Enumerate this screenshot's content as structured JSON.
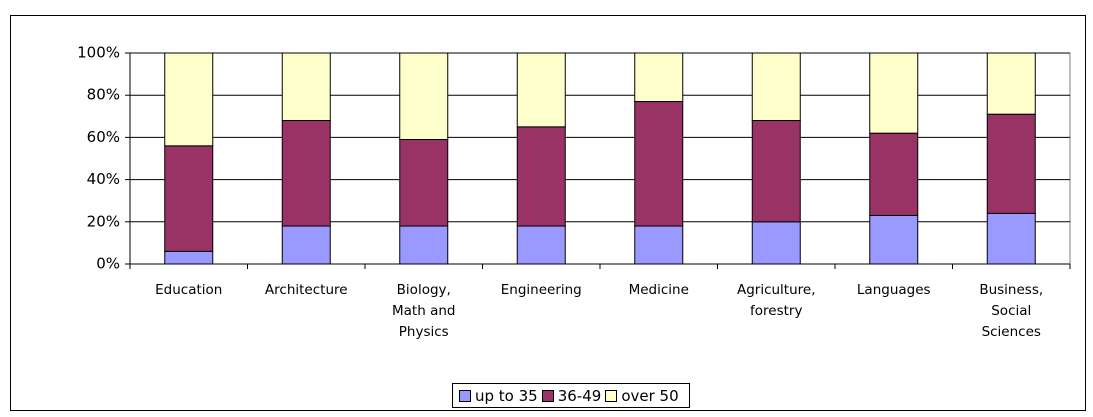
{
  "chart_data": {
    "type": "stacked_bar",
    "categories": [
      "Education",
      "Architecture",
      "Biology, Math and Physics",
      "Engineering",
      "Medicine",
      "Agriculture, forestry",
      "Languages",
      "Business, Social Sciences"
    ],
    "series": [
      {
        "name": "up to 35",
        "color": "#9999ff",
        "values": [
          6,
          18,
          18,
          18,
          18,
          20,
          23,
          24
        ]
      },
      {
        "name": "36-49",
        "color": "#993366",
        "values": [
          50,
          50,
          41,
          47,
          59,
          48,
          39,
          47
        ]
      },
      {
        "name": "over 50",
        "color": "#ffffcc",
        "values": [
          44,
          32,
          41,
          35,
          23,
          32,
          38,
          29
        ]
      }
    ],
    "ylim": [
      0,
      100
    ],
    "yticks": [
      {
        "value": 0,
        "label": "0%"
      },
      {
        "value": 20,
        "label": "20%"
      },
      {
        "value": 40,
        "label": "40%"
      },
      {
        "value": 60,
        "label": "60%"
      },
      {
        "value": 80,
        "label": "80%"
      },
      {
        "value": 100,
        "label": "100%"
      }
    ],
    "grid": true,
    "legend": "bottom"
  }
}
